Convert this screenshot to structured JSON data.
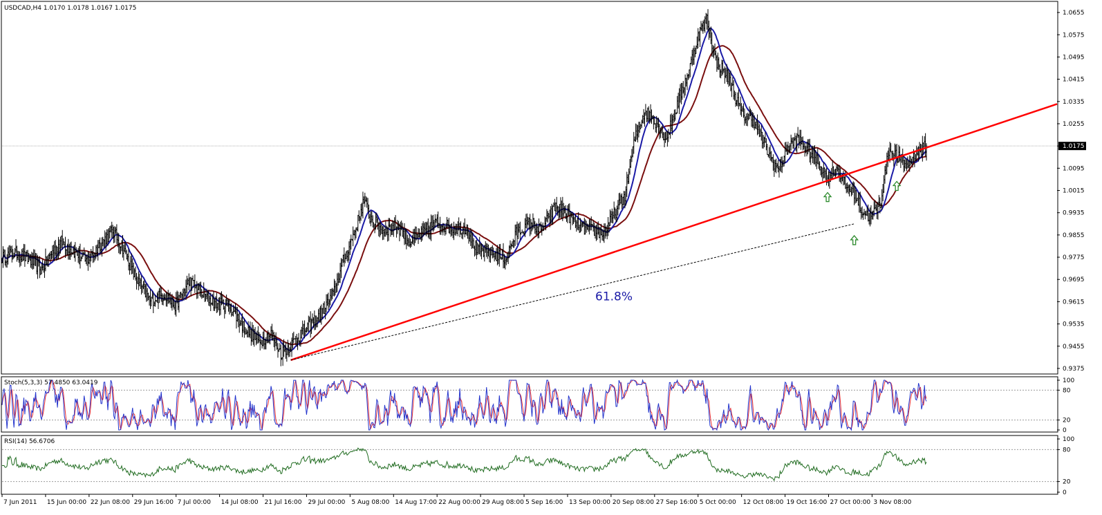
{
  "window": {
    "symbol_header": "USDCAD,H4  1.0170 1.0178 1.0167 1.0175"
  },
  "colors": {
    "bars": "#000000",
    "ma_fast": "#1a1aa6",
    "ma_slow": "#7a0f0f",
    "trendline": "#ff0000",
    "fib_line": "#000000",
    "arrows": "#2e8b2e",
    "stoch_main": "#2233cc",
    "stoch_signal": "#ee3333",
    "rsi": "#1f6b1f",
    "grid": "#b0b0b0",
    "current_price_bg": "#000000",
    "current_price_fg": "#ffffff"
  },
  "annotations": {
    "fib_label": "61.8%",
    "arrow_count": 3
  },
  "chart_data": [
    {
      "type": "ohlc",
      "title": "USDCAD,H4",
      "last": {
        "open": 1.017,
        "high": 1.0178,
        "low": 1.0167,
        "close": 1.0175
      },
      "current_price_label": "1.0175",
      "current_price": 1.0175,
      "ylim": [
        0.936,
        1.069
      ],
      "y_ticks": [
        "1.0655",
        "1.0575",
        "1.0495",
        "1.0415",
        "1.0335",
        "1.0255",
        "1.0175",
        "1.0095",
        "1.0015",
        "0.9935",
        "0.9855",
        "0.9775",
        "0.9695",
        "0.9615",
        "0.9535",
        "0.9455",
        "0.9375"
      ],
      "y_tick_values": [
        1.0655,
        1.0575,
        1.0495,
        1.0415,
        1.0335,
        1.0255,
        1.0175,
        1.0095,
        1.0015,
        0.9935,
        0.9855,
        0.9775,
        0.9695,
        0.9615,
        0.9535,
        0.9455,
        0.9375
      ],
      "x_ticks": [
        "7 Jun 2011",
        "15 Jun 00:00",
        "22 Jun 08:00",
        "29 Jun 16:00",
        "7 Jul 00:00",
        "14 Jul 08:00",
        "21 Jul 16:00",
        "29 Jul 00:00",
        "5 Aug 08:00",
        "14 Aug 17:00",
        "22 Aug 00:00",
        "29 Aug 08:00",
        "5 Sep 16:00",
        "13 Sep 00:00",
        "20 Sep 08:00",
        "27 Sep 16:00",
        "5 Oct 00:00",
        "12 Oct 08:00",
        "19 Oct 16:00",
        "27 Oct 00:00",
        "3 Nov 08:00"
      ],
      "x_tick_index": [
        0,
        44,
        88,
        132,
        176,
        220,
        264,
        308,
        352,
        396,
        440,
        484,
        528,
        572,
        616,
        660,
        704,
        748,
        792,
        836,
        880
      ],
      "bar_count": 900,
      "price_path": [
        [
          0,
          0.9775
        ],
        [
          15,
          0.979
        ],
        [
          30,
          0.976
        ],
        [
          40,
          0.973
        ],
        [
          50,
          0.979
        ],
        [
          60,
          0.983
        ],
        [
          75,
          0.979
        ],
        [
          85,
          0.976
        ],
        [
          100,
          0.9825
        ],
        [
          112,
          0.987
        ],
        [
          122,
          0.981
        ],
        [
          135,
          0.97
        ],
        [
          150,
          0.962
        ],
        [
          165,
          0.964
        ],
        [
          175,
          0.96
        ],
        [
          190,
          0.969
        ],
        [
          200,
          0.965
        ],
        [
          215,
          0.961
        ],
        [
          230,
          0.96
        ],
        [
          245,
          0.952
        ],
        [
          260,
          0.947
        ],
        [
          272,
          0.95
        ],
        [
          282,
          0.943
        ],
        [
          292,
          0.946
        ],
        [
          305,
          0.951
        ],
        [
          320,
          0.956
        ],
        [
          335,
          0.964
        ],
        [
          345,
          0.976
        ],
        [
          358,
          0.988
        ],
        [
          366,
          0.998
        ],
        [
          372,
          0.992
        ],
        [
          385,
          0.987
        ],
        [
          400,
          0.989
        ],
        [
          412,
          0.983
        ],
        [
          425,
          0.986
        ],
        [
          440,
          0.99
        ],
        [
          455,
          0.988
        ],
        [
          470,
          0.988
        ],
        [
          480,
          0.98
        ],
        [
          495,
          0.979
        ],
        [
          510,
          0.977
        ],
        [
          520,
          0.986
        ],
        [
          535,
          0.99
        ],
        [
          545,
          0.987
        ],
        [
          560,
          0.996
        ],
        [
          572,
          0.993
        ],
        [
          585,
          0.988
        ],
        [
          600,
          0.987
        ],
        [
          608,
          0.986
        ],
        [
          618,
          0.992
        ],
        [
          630,
          1.0
        ],
        [
          640,
          1.02
        ],
        [
          650,
          1.03
        ],
        [
          662,
          1.026
        ],
        [
          672,
          1.02
        ],
        [
          682,
          1.031
        ],
        [
          695,
          1.045
        ],
        [
          705,
          1.058
        ],
        [
          713,
          1.063
        ],
        [
          722,
          1.048
        ],
        [
          735,
          1.042
        ],
        [
          748,
          1.029
        ],
        [
          760,
          1.027
        ],
        [
          775,
          1.015
        ],
        [
          785,
          1.009
        ],
        [
          795,
          1.017
        ],
        [
          805,
          1.02
        ],
        [
          815,
          1.016
        ],
        [
          825,
          1.012
        ],
        [
          835,
          1.006
        ],
        [
          845,
          1.01
        ],
        [
          853,
          1.003
        ],
        [
          862,
          1.001
        ],
        [
          870,
          0.994
        ],
        [
          878,
          0.992
        ],
        [
          888,
          0.996
        ],
        [
          897,
          1.016
        ],
        [
          905,
          1.014
        ],
        [
          915,
          1.01
        ],
        [
          925,
          1.015
        ],
        [
          935,
          1.0175
        ]
      ],
      "trendline": {
        "from": [
          292,
          0.9405
        ],
        "to": [
          1100,
          1.0365
        ]
      },
      "fib_line": {
        "from": [
          292,
          0.9405
        ],
        "to": [
          862,
          0.9895
        ]
      },
      "arrow_points": [
        [
          835,
          0.999
        ],
        [
          862,
          0.9835
        ],
        [
          905,
          1.003
        ]
      ],
      "fib_label_at": [
        600,
        0.962
      ]
    },
    {
      "type": "line",
      "title": "Stoch(5,3,3) 57.4850 63.0419",
      "ylim": [
        0,
        100
      ],
      "y_ticks": [
        "100",
        "80",
        "20",
        "0"
      ],
      "y_tick_values": [
        100,
        80,
        20,
        0
      ],
      "levels": [
        20,
        80
      ],
      "main_last": 57.485,
      "signal_last": 63.0419
    },
    {
      "type": "line",
      "title": "RSI(14) 56.6706",
      "ylim": [
        0,
        100
      ],
      "y_ticks": [
        "100",
        "80",
        "20",
        "0"
      ],
      "y_tick_values": [
        100,
        80,
        20,
        0
      ],
      "levels": [
        20,
        80
      ],
      "last": 56.6706
    }
  ]
}
